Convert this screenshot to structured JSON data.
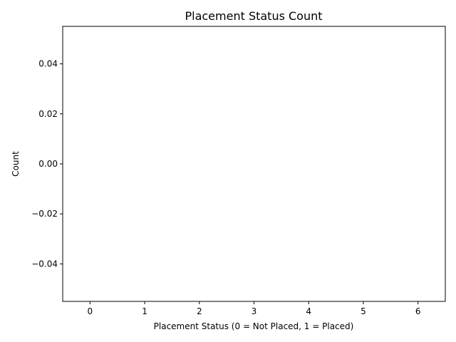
{
  "chart_data": {
    "type": "bar",
    "title": "Placement Status Count",
    "xlabel": "Placement Status (0 = Not Placed, 1 = Placed)",
    "ylabel": "Count",
    "x_ticks": [
      "0",
      "1",
      "2",
      "3",
      "4",
      "5",
      "6"
    ],
    "x_tick_values": [
      0,
      1,
      2,
      3,
      4,
      5,
      6
    ],
    "xlim": [
      -0.5,
      6.5
    ],
    "y_ticks": [
      "0.04",
      "0.02",
      "0.00",
      "−0.02",
      "−0.04"
    ],
    "y_tick_values": [
      0.04,
      0.02,
      0.0,
      -0.02,
      -0.04
    ],
    "ylim": [
      -0.055,
      0.055
    ],
    "categories": [],
    "values": [],
    "grid": false,
    "legend": "none"
  }
}
